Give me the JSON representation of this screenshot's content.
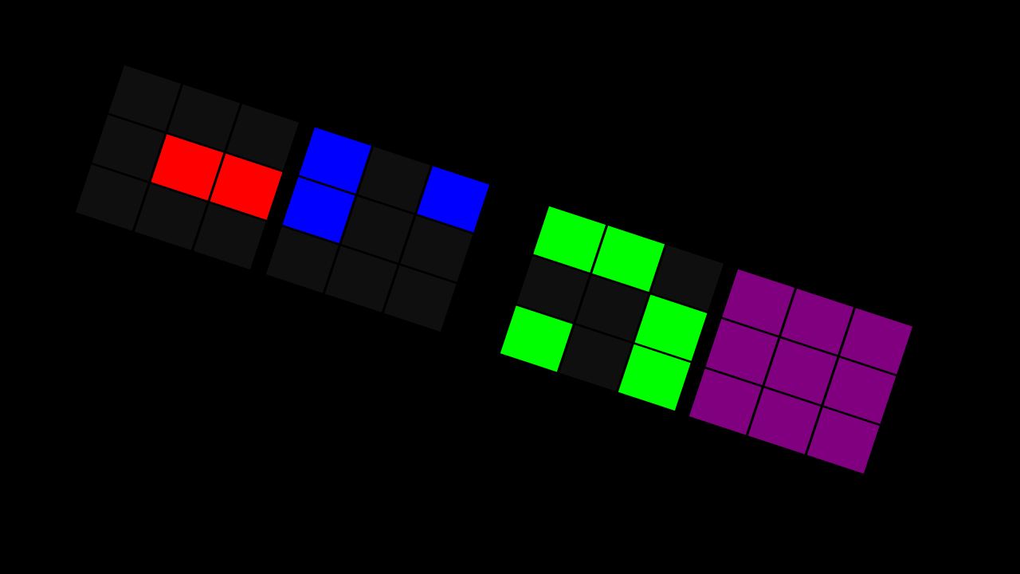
{
  "background": "#000000",
  "empty_color": "#0f0f0f",
  "grids": [
    {
      "name": "red-grid",
      "color": "#ff0000",
      "cells": [
        [
          0,
          0,
          0
        ],
        [
          0,
          1,
          1
        ],
        [
          0,
          0,
          0
        ]
      ]
    },
    {
      "name": "blue-grid",
      "color": "#0000ff",
      "cells": [
        [
          1,
          0,
          1
        ],
        [
          1,
          0,
          0
        ],
        [
          0,
          0,
          0
        ]
      ]
    },
    {
      "name": "green-grid",
      "color": "#00ff00",
      "cells": [
        [
          1,
          1,
          0
        ],
        [
          0,
          0,
          1
        ],
        [
          1,
          0,
          1
        ]
      ]
    },
    {
      "name": "purple-grid",
      "color": "#800080",
      "cells": [
        [
          1,
          1,
          1
        ],
        [
          1,
          1,
          1
        ],
        [
          1,
          1,
          1
        ]
      ]
    }
  ]
}
